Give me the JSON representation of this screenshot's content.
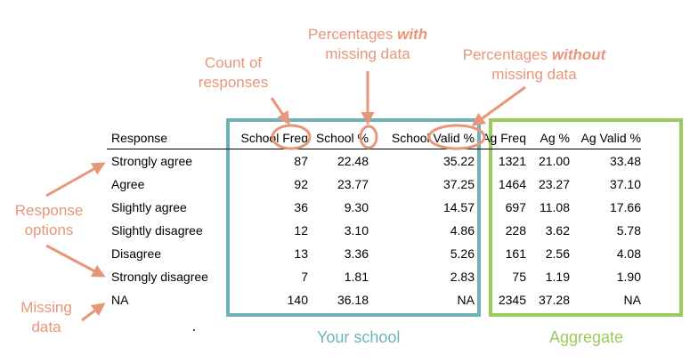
{
  "annotations": {
    "count": [
      "Count of",
      "responses"
    ],
    "pct_with": {
      "prefix": "Percentages ",
      "emph": "with",
      "line2": "missing data"
    },
    "pct_without": {
      "prefix": "Percentages ",
      "emph": "without",
      "line2": "missing data"
    },
    "response_options": [
      "Response",
      "options"
    ],
    "missing_data": [
      "Missing",
      "data"
    ]
  },
  "labels": {
    "school": "Your school",
    "aggregate": "Aggregate"
  },
  "colors": {
    "annotation": "#e8967a",
    "school_box": "#6fb3b8",
    "aggregate_box": "#9ccb5d"
  },
  "table": {
    "headers": [
      "Response",
      "School Freq",
      "School %",
      "School Valid %",
      "Ag Freq",
      "Ag %",
      "Ag Valid %"
    ],
    "rows": [
      [
        "Strongly agree",
        "87",
        "22.48",
        "35.22",
        "1321",
        "21.00",
        "33.48"
      ],
      [
        "Agree",
        "92",
        "23.77",
        "37.25",
        "1464",
        "23.27",
        "37.10"
      ],
      [
        "Slightly agree",
        "36",
        "9.30",
        "14.57",
        "697",
        "11.08",
        "17.66"
      ],
      [
        "Slightly disagree",
        "12",
        "3.10",
        "4.86",
        "228",
        "3.62",
        "5.78"
      ],
      [
        "Disagree",
        "13",
        "3.36",
        "5.26",
        "161",
        "2.56",
        "4.08"
      ],
      [
        "Strongly disagree",
        "7",
        "1.81",
        "2.83",
        "75",
        "1.19",
        "1.90"
      ],
      [
        "NA",
        "140",
        "36.18",
        "NA",
        "2345",
        "37.28",
        "NA"
      ]
    ]
  }
}
